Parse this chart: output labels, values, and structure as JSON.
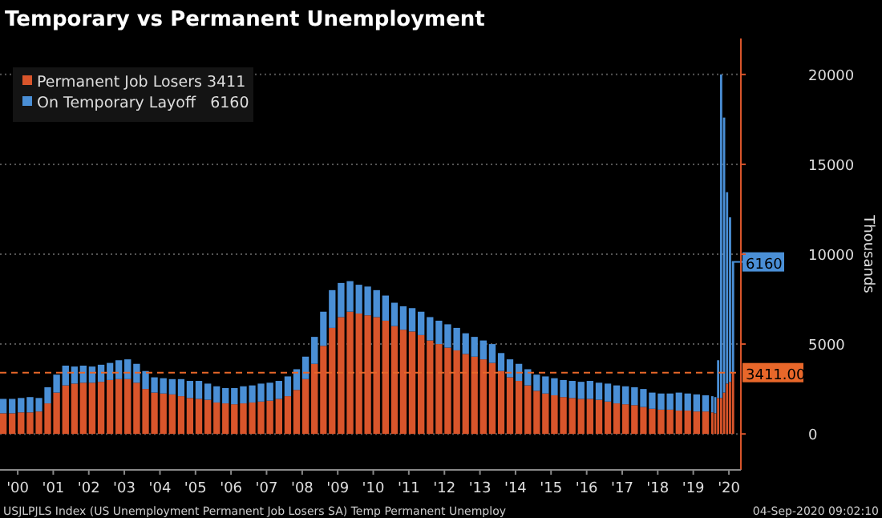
{
  "chart_data": {
    "type": "bar",
    "title": "Temporary vs Permanent Unemployment",
    "stacked": true,
    "ylabel": "Thousands",
    "x": [
      "2000-01",
      "2000-04",
      "2000-07",
      "2000-10",
      "2001-01",
      "2001-04",
      "2001-07",
      "2001-10",
      "2002-01",
      "2002-04",
      "2002-07",
      "2002-10",
      "2003-01",
      "2003-04",
      "2003-07",
      "2003-10",
      "2004-01",
      "2004-04",
      "2004-07",
      "2004-10",
      "2005-01",
      "2005-04",
      "2005-07",
      "2005-10",
      "2006-01",
      "2006-04",
      "2006-07",
      "2006-10",
      "2007-01",
      "2007-04",
      "2007-07",
      "2007-10",
      "2008-01",
      "2008-04",
      "2008-07",
      "2008-10",
      "2009-01",
      "2009-04",
      "2009-07",
      "2009-10",
      "2010-01",
      "2010-04",
      "2010-07",
      "2010-10",
      "2011-01",
      "2011-04",
      "2011-07",
      "2011-10",
      "2012-01",
      "2012-04",
      "2012-07",
      "2012-10",
      "2013-01",
      "2013-04",
      "2013-07",
      "2013-10",
      "2014-01",
      "2014-04",
      "2014-07",
      "2014-10",
      "2015-01",
      "2015-04",
      "2015-07",
      "2015-10",
      "2016-01",
      "2016-04",
      "2016-07",
      "2016-10",
      "2017-01",
      "2017-04",
      "2017-07",
      "2017-10",
      "2018-01",
      "2018-04",
      "2018-07",
      "2018-10",
      "2019-01",
      "2019-04",
      "2019-07",
      "2019-10",
      "2020-01",
      "2020-02",
      "2020-03",
      "2020-04",
      "2020-05",
      "2020-06",
      "2020-07",
      "2020-08"
    ],
    "series": [
      {
        "name": "Permanent Job Losers 3411",
        "color": "#d9552b",
        "values": [
          1150,
          1150,
          1200,
          1200,
          1250,
          1700,
          2300,
          2700,
          2800,
          2850,
          2850,
          2900,
          3000,
          3050,
          3050,
          2850,
          2500,
          2300,
          2250,
          2200,
          2100,
          2000,
          1950,
          1900,
          1750,
          1700,
          1650,
          1700,
          1750,
          1800,
          1850,
          1950,
          2100,
          2450,
          3050,
          3900,
          4900,
          5900,
          6500,
          6800,
          6700,
          6600,
          6500,
          6300,
          6000,
          5800,
          5700,
          5500,
          5200,
          5000,
          4800,
          4650,
          4450,
          4300,
          4150,
          3950,
          3500,
          3150,
          2950,
          2700,
          2400,
          2250,
          2150,
          2050,
          2000,
          1950,
          1950,
          1900,
          1800,
          1700,
          1650,
          1600,
          1500,
          1400,
          1350,
          1350,
          1300,
          1300,
          1250,
          1250,
          1200,
          1150,
          2000,
          2000,
          2300,
          2800,
          2900,
          3411
        ]
      },
      {
        "name": "On Temporary Layoff   6160",
        "color": "#4a8fd6",
        "values": [
          800,
          800,
          800,
          850,
          750,
          900,
          1000,
          1100,
          950,
          950,
          900,
          950,
          950,
          1050,
          1100,
          1050,
          1000,
          850,
          850,
          850,
          950,
          950,
          1000,
          900,
          900,
          850,
          900,
          950,
          950,
          1000,
          1000,
          1000,
          1100,
          1150,
          1250,
          1500,
          1900,
          2100,
          1900,
          1700,
          1600,
          1600,
          1500,
          1400,
          1300,
          1300,
          1300,
          1300,
          1300,
          1300,
          1300,
          1250,
          1150,
          1100,
          1050,
          1050,
          1000,
          1000,
          950,
          900,
          900,
          950,
          950,
          950,
          950,
          950,
          1000,
          950,
          1000,
          1000,
          1000,
          1000,
          1000,
          900,
          900,
          900,
          1000,
          950,
          950,
          900,
          900,
          900,
          2100,
          18000,
          15300,
          10650,
          9150,
          6160
        ]
      }
    ],
    "xlim": [
      "2000-01",
      "2020-11"
    ],
    "xticks": [
      {
        "value": "2000-07",
        "label": "'00"
      },
      {
        "value": "2001-07",
        "label": "'01"
      },
      {
        "value": "2002-07",
        "label": "'02"
      },
      {
        "value": "2003-07",
        "label": "'03"
      },
      {
        "value": "2004-07",
        "label": "'04"
      },
      {
        "value": "2005-07",
        "label": "'05"
      },
      {
        "value": "2006-07",
        "label": "'06"
      },
      {
        "value": "2007-07",
        "label": "'07"
      },
      {
        "value": "2008-07",
        "label": "'08"
      },
      {
        "value": "2009-07",
        "label": "'09"
      },
      {
        "value": "2010-07",
        "label": "'10"
      },
      {
        "value": "2011-07",
        "label": "'11"
      },
      {
        "value": "2012-07",
        "label": "'12"
      },
      {
        "value": "2013-07",
        "label": "'13"
      },
      {
        "value": "2014-07",
        "label": "'14"
      },
      {
        "value": "2015-07",
        "label": "'15"
      },
      {
        "value": "2016-07",
        "label": "'16"
      },
      {
        "value": "2017-07",
        "label": "'17"
      },
      {
        "value": "2018-07",
        "label": "'18"
      },
      {
        "value": "2019-07",
        "label": "'19"
      },
      {
        "value": "2020-07",
        "label": "'20"
      }
    ],
    "ylim": [
      -2000,
      22000
    ],
    "yticks": [
      0,
      5000,
      10000,
      15000,
      20000
    ],
    "grid": "y",
    "legend": "top left",
    "ref_lines": [
      {
        "axis": "y",
        "value": 3411,
        "label": "3411.00",
        "color": "#e8672a",
        "line_style": "dashed"
      }
    ],
    "annotations": [
      {
        "text": "6160",
        "x": "2020-08",
        "y": 9571
      },
      "USJLPJLS Index (US Unemployment Permanent Job Losers SA) Temp Permanent Unemploy",
      "04-Sep-2020 09:02:10"
    ]
  }
}
